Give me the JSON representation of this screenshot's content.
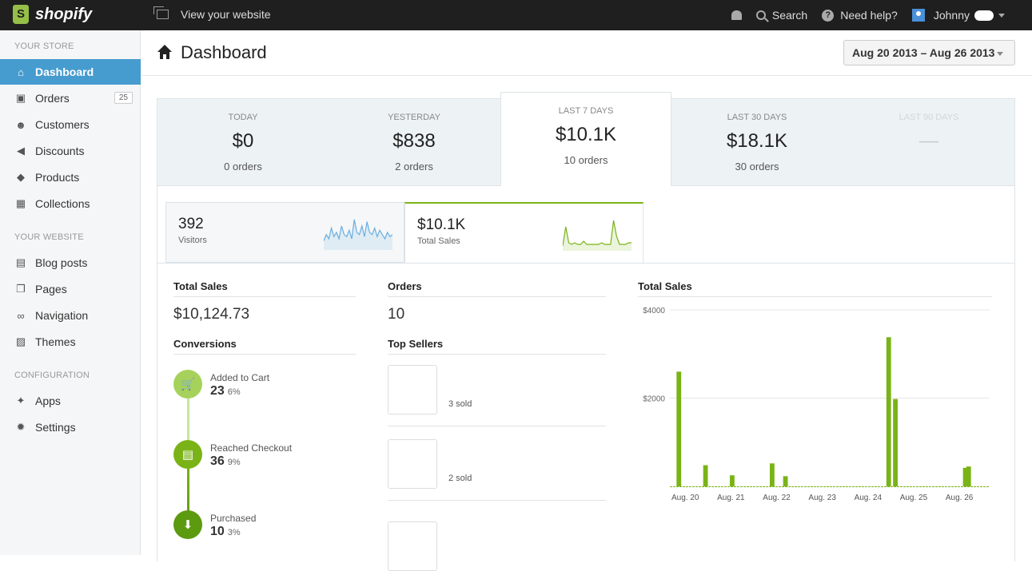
{
  "topbar": {
    "brand": "shopify",
    "view_site": "View your website",
    "search": "Search",
    "help": "Need help?",
    "user": "Johnny"
  },
  "sidebar": {
    "sections": [
      {
        "title": "YOUR STORE",
        "items": [
          {
            "label": "Dashboard",
            "icon": "home-icon",
            "active": true
          },
          {
            "label": "Orders",
            "icon": "inbox-icon",
            "badge": "25"
          },
          {
            "label": "Customers",
            "icon": "people-icon"
          },
          {
            "label": "Discounts",
            "icon": "megaphone-icon"
          },
          {
            "label": "Products",
            "icon": "tag-icon"
          },
          {
            "label": "Collections",
            "icon": "box-icon"
          }
        ]
      },
      {
        "title": "YOUR WEBSITE",
        "items": [
          {
            "label": "Blog posts",
            "icon": "blog-icon"
          },
          {
            "label": "Pages",
            "icon": "pages-icon"
          },
          {
            "label": "Navigation",
            "icon": "link-icon"
          },
          {
            "label": "Themes",
            "icon": "image-icon"
          }
        ]
      },
      {
        "title": "CONFIGURATION",
        "items": [
          {
            "label": "Apps",
            "icon": "apps-icon"
          },
          {
            "label": "Settings",
            "icon": "gear-icon"
          }
        ]
      }
    ]
  },
  "header": {
    "title": "Dashboard",
    "date_range": "Aug 20 2013 – Aug 26 2013"
  },
  "stats": [
    {
      "label": "TODAY",
      "value": "$0",
      "orders": "0 orders"
    },
    {
      "label": "YESTERDAY",
      "value": "$838",
      "orders": "2 orders"
    },
    {
      "label": "LAST 7 DAYS",
      "value": "$10.1K",
      "orders": "10 orders",
      "active": true
    },
    {
      "label": "LAST 30 DAYS",
      "value": "$18.1K",
      "orders": "30 orders"
    },
    {
      "label": "LAST 90 DAYS",
      "value": "—",
      "orders": "",
      "dim": true
    }
  ],
  "metric_tabs": [
    {
      "value": "392",
      "label": "Visitors",
      "spark": [
        2,
        5,
        3,
        8,
        4,
        6,
        3,
        9,
        5,
        4,
        7,
        3,
        12,
        6,
        5,
        9,
        4,
        11,
        6,
        5,
        8,
        4,
        7,
        5,
        3,
        6,
        4,
        5
      ],
      "color": "#6aaee0"
    },
    {
      "value": "$10.1K",
      "label": "Total Sales",
      "spark": [
        0,
        12,
        2,
        1,
        2,
        1,
        1,
        3,
        1,
        1,
        1,
        1,
        1,
        2,
        1,
        1,
        1,
        16,
        6,
        1,
        1,
        1,
        2,
        2
      ],
      "color": "#7ab317",
      "active": true
    }
  ],
  "total_sales": {
    "heading": "Total Sales",
    "value": "$10,124.73"
  },
  "conversions": {
    "heading": "Conversions",
    "steps": [
      {
        "label": "Added to Cart",
        "count": "23",
        "pct": "6%",
        "icon": "cart-icon"
      },
      {
        "label": "Reached Checkout",
        "count": "36",
        "pct": "9%",
        "icon": "register-icon"
      },
      {
        "label": "Purchased",
        "count": "10",
        "pct": "3%",
        "icon": "tray-icon"
      }
    ]
  },
  "orders": {
    "heading": "Orders",
    "value": "10"
  },
  "top_sellers": {
    "heading": "Top Sellers",
    "items": [
      {
        "sold": "3 sold"
      },
      {
        "sold": "2 sold"
      },
      {
        "sold": ""
      }
    ]
  },
  "chart_data": {
    "type": "bar",
    "title": "Total Sales",
    "ylim": [
      0,
      4000
    ],
    "yticks": [
      "$4000",
      "$2000"
    ],
    "xticks": [
      "Aug. 20",
      "Aug. 21",
      "Aug. 22",
      "Aug. 23",
      "Aug. 24",
      "Aug. 25",
      "Aug. 26"
    ],
    "bar_color": "#7ab317",
    "values": [
      0,
      0,
      2600,
      0,
      0,
      0,
      0,
      0,
      0,
      0,
      480,
      0,
      0,
      0,
      0,
      0,
      0,
      0,
      250,
      0,
      0,
      0,
      0,
      0,
      0,
      0,
      0,
      0,
      0,
      0,
      520,
      0,
      0,
      0,
      230,
      0,
      0,
      0,
      0,
      0,
      0,
      0,
      0,
      0,
      0,
      0,
      0,
      0,
      0,
      0,
      0,
      0,
      0,
      0,
      0,
      0,
      0,
      0,
      0,
      0,
      0,
      0,
      0,
      0,
      0,
      3380,
      0,
      1980,
      0,
      0,
      0,
      0,
      0,
      0,
      0,
      0,
      0,
      0,
      0,
      0,
      0,
      0,
      0,
      0,
      0,
      0,
      0,
      0,
      420,
      450,
      0,
      0,
      0,
      0,
      0,
      0
    ]
  }
}
